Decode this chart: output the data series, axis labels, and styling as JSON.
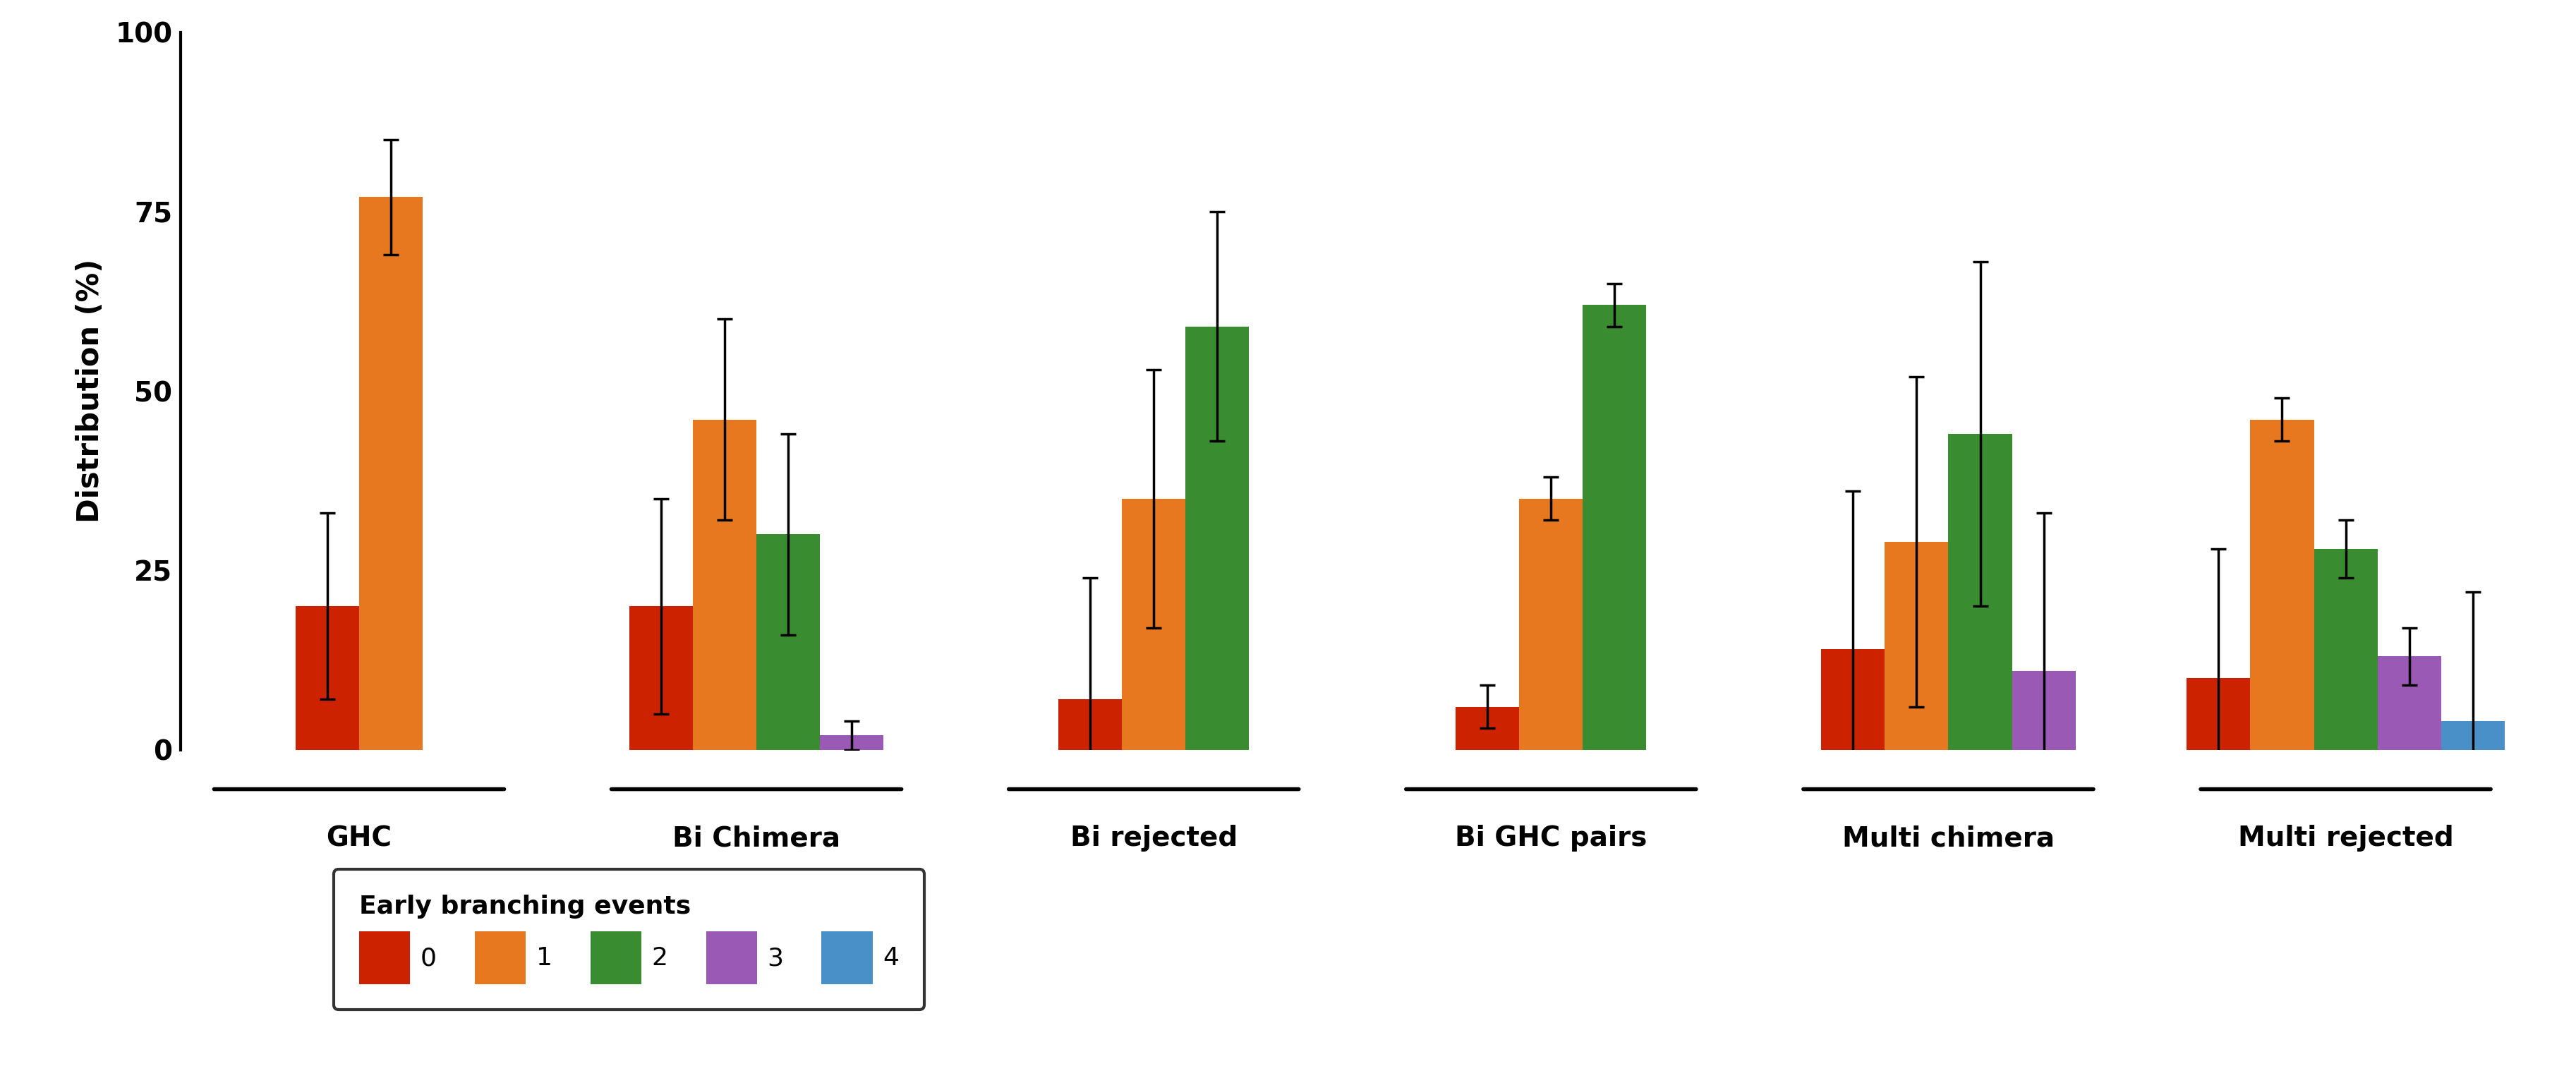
{
  "groups": [
    "GHC",
    "Bi Chimera",
    "Bi rejected",
    "Bi GHC pairs",
    "Multi chimera",
    "Multi rejected"
  ],
  "series_labels": [
    "0",
    "1",
    "2",
    "3",
    "4"
  ],
  "colors": [
    "#cc2200",
    "#e87820",
    "#3a8c30",
    "#9b59b6",
    "#4a90c8"
  ],
  "bar_values": [
    [
      20,
      77,
      0,
      0,
      0
    ],
    [
      20,
      46,
      30,
      2,
      0
    ],
    [
      7,
      35,
      59,
      0,
      0
    ],
    [
      6,
      35,
      62,
      0,
      0
    ],
    [
      14,
      29,
      44,
      11,
      0
    ],
    [
      10,
      46,
      28,
      13,
      4
    ]
  ],
  "error_bars": [
    [
      13,
      8,
      0,
      0,
      0
    ],
    [
      15,
      14,
      14,
      2,
      0
    ],
    [
      17,
      18,
      16,
      0,
      0
    ],
    [
      3,
      3,
      3,
      0,
      0
    ],
    [
      22,
      23,
      24,
      22,
      0
    ],
    [
      18,
      3,
      4,
      4,
      18
    ]
  ],
  "ylabel": "Distribution (%)",
  "ylim": [
    0,
    100
  ],
  "yticks": [
    0,
    25,
    50,
    75,
    100
  ],
  "legend_title": "Early branching events",
  "background_color": "#ffffff",
  "axis_fontsize": 30,
  "tick_fontsize": 28,
  "legend_fontsize": 26,
  "group_label_fontsize": 28
}
